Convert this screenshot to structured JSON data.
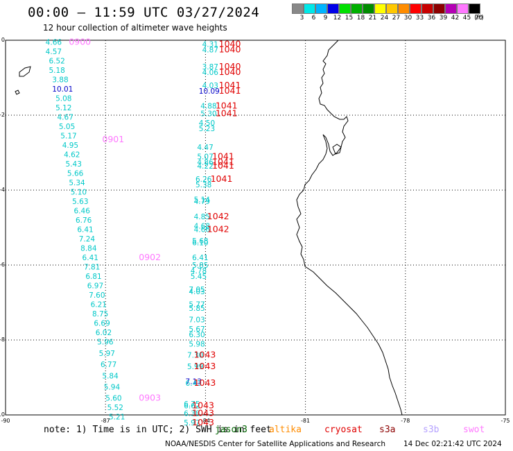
{
  "header": {
    "title": "00:00 – 11:59 UTC 03/27/2024",
    "subtitle": "12 hour collection of altimeter wave heights"
  },
  "legend": {
    "unit": "(ft)",
    "bins": [
      {
        "label": "3",
        "color": "#888888"
      },
      {
        "label": "6",
        "color": "#00e8e8"
      },
      {
        "label": "9",
        "color": "#00b4ff"
      },
      {
        "label": "12",
        "color": "#0000e8"
      },
      {
        "label": "15",
        "color": "#00e000"
      },
      {
        "label": "18",
        "color": "#00b000"
      },
      {
        "label": "21",
        "color": "#008c00"
      },
      {
        "label": "24",
        "color": "#ffff00"
      },
      {
        "label": "27",
        "color": "#ffc800"
      },
      {
        "label": "30",
        "color": "#ff8c00"
      },
      {
        "label": "33",
        "color": "#ff0000"
      },
      {
        "label": "36",
        "color": "#c80000"
      },
      {
        "label": "39",
        "color": "#8c0000"
      },
      {
        "label": "42",
        "color": "#b400b4"
      },
      {
        "label": "45",
        "color": "#ff78ff"
      },
      {
        "label": "70",
        "color": "#000000"
      }
    ]
  },
  "axes": {
    "lon_labels": [
      "-90",
      "-87",
      "-84",
      "-81",
      "-78",
      "-75"
    ],
    "lat_labels": [
      "0",
      "-2",
      "-4",
      "-6",
      "-8",
      "-10"
    ]
  },
  "track_a": [
    {
      "lat": -0.05,
      "lon": -88.8,
      "text": "4.66",
      "color": "#00c8c8"
    },
    {
      "lat": -0.3,
      "lon": -88.8,
      "text": "4.57",
      "color": "#00c8c8"
    },
    {
      "lat": -0.55,
      "lon": -88.7,
      "text": "6.52",
      "color": "#00c8c8"
    },
    {
      "lat": -0.8,
      "lon": -88.7,
      "text": "5.18",
      "color": "#00c8c8"
    },
    {
      "lat": -1.05,
      "lon": -88.6,
      "text": "3.88",
      "color": "#00c8c8"
    },
    {
      "lat": -1.3,
      "lon": -88.6,
      "text": "10.01",
      "color": "#0000c8"
    },
    {
      "lat": -1.55,
      "lon": -88.5,
      "text": "5.08",
      "color": "#00c8c8"
    },
    {
      "lat": -1.8,
      "lon": -88.5,
      "text": "5.12",
      "color": "#00c8c8"
    },
    {
      "lat": -2.05,
      "lon": -88.45,
      "text": "4.67",
      "color": "#00c8c8"
    },
    {
      "lat": -2.3,
      "lon": -88.4,
      "text": "5.05",
      "color": "#00c8c8"
    },
    {
      "lat": -2.55,
      "lon": -88.35,
      "text": "5.17",
      "color": "#00c8c8"
    },
    {
      "lat": -2.8,
      "lon": -88.3,
      "text": "4.95",
      "color": "#00c8c8"
    },
    {
      "lat": -3.05,
      "lon": -88.25,
      "text": "4.62",
      "color": "#00c8c8"
    },
    {
      "lat": -3.3,
      "lon": -88.2,
      "text": "5.43",
      "color": "#00c8c8"
    },
    {
      "lat": -3.55,
      "lon": -88.15,
      "text": "5.66",
      "color": "#00c8c8"
    },
    {
      "lat": -3.8,
      "lon": -88.1,
      "text": "5.34",
      "color": "#00c8c8"
    },
    {
      "lat": -4.05,
      "lon": -88.05,
      "text": "5.10",
      "color": "#00c8c8"
    },
    {
      "lat": -4.3,
      "lon": -88.0,
      "text": "5.63",
      "color": "#00c8c8"
    },
    {
      "lat": -4.55,
      "lon": -87.95,
      "text": "6.46",
      "color": "#00c8c8"
    },
    {
      "lat": -4.8,
      "lon": -87.9,
      "text": "6.76",
      "color": "#00c8c8"
    },
    {
      "lat": -5.05,
      "lon": -87.85,
      "text": "6.41",
      "color": "#00c8c8"
    },
    {
      "lat": -5.3,
      "lon": -87.8,
      "text": "7.24",
      "color": "#00c8c8"
    },
    {
      "lat": -5.55,
      "lon": -87.75,
      "text": "8.84",
      "color": "#00c8c8"
    },
    {
      "lat": -5.8,
      "lon": -87.7,
      "text": "6.41",
      "color": "#00c8c8"
    },
    {
      "lat": -6.05,
      "lon": -87.65,
      "text": "7.81",
      "color": "#00c8c8"
    },
    {
      "lat": -6.3,
      "lon": -87.6,
      "text": "6.81",
      "color": "#00c8c8"
    },
    {
      "lat": -6.55,
      "lon": -87.55,
      "text": "6.97",
      "color": "#00c8c8"
    },
    {
      "lat": -6.8,
      "lon": -87.5,
      "text": "7.60",
      "color": "#00c8c8"
    },
    {
      "lat": -7.05,
      "lon": -87.45,
      "text": "6.21",
      "color": "#00c8c8"
    },
    {
      "lat": -7.3,
      "lon": -87.4,
      "text": "8.75",
      "color": "#00c8c8"
    },
    {
      "lat": -7.55,
      "lon": -87.35,
      "text": "6.69",
      "color": "#00c8c8"
    },
    {
      "lat": -7.8,
      "lon": -87.3,
      "text": "6.02",
      "color": "#00c8c8"
    },
    {
      "lat": -8.05,
      "lon": -87.25,
      "text": "5.96",
      "color": "#00c8c8"
    },
    {
      "lat": -8.35,
      "lon": -87.2,
      "text": "5.97",
      "color": "#00c8c8"
    },
    {
      "lat": -8.65,
      "lon": -87.15,
      "text": "6.77",
      "color": "#00c8c8"
    },
    {
      "lat": -8.95,
      "lon": -87.1,
      "text": "5.84",
      "color": "#00c8c8"
    },
    {
      "lat": -9.25,
      "lon": -87.05,
      "text": "5.94",
      "color": "#00c8c8"
    },
    {
      "lat": -9.55,
      "lon": -87.0,
      "text": "5.60",
      "color": "#00c8c8"
    },
    {
      "lat": -9.8,
      "lon": -86.95,
      "text": "5.52",
      "color": "#00c8c8"
    },
    {
      "lat": -10.05,
      "lon": -86.9,
      "text": "5.21",
      "color": "#00c8c8"
    }
  ],
  "track_b": [
    {
      "lat": -0.1,
      "lon": -84.1,
      "text": "4.31",
      "color": "#00c8c8"
    },
    {
      "lat": -0.25,
      "lon": -84.1,
      "text": "4.87",
      "color": "#00c8c8"
    },
    {
      "lat": -0.7,
      "lon": -84.1,
      "text": "3.87",
      "color": "#00c8c8"
    },
    {
      "lat": -0.85,
      "lon": -84.1,
      "text": "4.06",
      "color": "#00c8c8"
    },
    {
      "lat": -1.2,
      "lon": -84.1,
      "text": "4.03",
      "color": "#00c8c8"
    },
    {
      "lat": -1.35,
      "lon": -84.2,
      "text": "10.09",
      "color": "#0000c8"
    },
    {
      "lat": -1.75,
      "lon": -84.15,
      "text": "4.88",
      "color": "#00c8c8"
    },
    {
      "lat": -1.95,
      "lon": -84.15,
      "text": "5.30",
      "color": "#00c8c8"
    },
    {
      "lat": -2.2,
      "lon": -84.2,
      "text": "4.50",
      "color": "#00c8c8"
    },
    {
      "lat": -2.35,
      "lon": -84.2,
      "text": "5.23",
      "color": "#00c8c8"
    },
    {
      "lat": -2.85,
      "lon": -84.25,
      "text": "4.47",
      "color": "#00c8c8"
    },
    {
      "lat": -3.1,
      "lon": -84.25,
      "text": "5.07",
      "color": "#00c8c8"
    },
    {
      "lat": -3.25,
      "lon": -84.25,
      "text": "4.86",
      "color": "#00c8c8"
    },
    {
      "lat": -3.35,
      "lon": -84.25,
      "text": "4.22",
      "color": "#00c8c8"
    },
    {
      "lat": -3.7,
      "lon": -84.3,
      "text": "6.26",
      "color": "#00c8c8"
    },
    {
      "lat": -3.85,
      "lon": -84.3,
      "text": "5.38",
      "color": "#00c8c8"
    },
    {
      "lat": -4.25,
      "lon": -84.35,
      "text": "5.14",
      "color": "#00c8c8"
    },
    {
      "lat": -4.3,
      "lon": -84.35,
      "text": "4.79",
      "color": "#00c8c8"
    },
    {
      "lat": -4.7,
      "lon": -84.35,
      "text": "4.85",
      "color": "#00c8c8"
    },
    {
      "lat": -4.95,
      "lon": -84.35,
      "text": "4.68",
      "color": "#00c8c8"
    },
    {
      "lat": -5.05,
      "lon": -84.35,
      "text": "4.66",
      "color": "#00c8c8"
    },
    {
      "lat": -5.35,
      "lon": -84.4,
      "text": "5.68",
      "color": "#00c8c8"
    },
    {
      "lat": -5.4,
      "lon": -84.4,
      "text": "6.10",
      "color": "#00c8c8"
    },
    {
      "lat": -5.8,
      "lon": -84.4,
      "text": "6.41",
      "color": "#00c8c8"
    },
    {
      "lat": -6.0,
      "lon": -84.4,
      "text": "5.85",
      "color": "#00c8c8"
    },
    {
      "lat": -6.15,
      "lon": -84.45,
      "text": "4.78",
      "color": "#00c8c8"
    },
    {
      "lat": -6.3,
      "lon": -84.45,
      "text": "5.45",
      "color": "#00c8c8"
    },
    {
      "lat": -6.65,
      "lon": -84.5,
      "text": "7.05",
      "color": "#00c8c8"
    },
    {
      "lat": -6.7,
      "lon": -84.5,
      "text": "4.03",
      "color": "#00c8c8"
    },
    {
      "lat": -7.05,
      "lon": -84.5,
      "text": "5.77",
      "color": "#00c8c8"
    },
    {
      "lat": -7.15,
      "lon": -84.5,
      "text": "5.85",
      "color": "#00c8c8"
    },
    {
      "lat": -7.45,
      "lon": -84.5,
      "text": "7.03",
      "color": "#00c8c8"
    },
    {
      "lat": -7.7,
      "lon": -84.5,
      "text": "5.67",
      "color": "#00c8c8"
    },
    {
      "lat": -7.85,
      "lon": -84.5,
      "text": "6.30",
      "color": "#00c8c8"
    },
    {
      "lat": -8.1,
      "lon": -84.5,
      "text": "5.98",
      "color": "#00c8c8"
    },
    {
      "lat": -8.4,
      "lon": -84.55,
      "text": "7.30",
      "color": "#00c8c8"
    },
    {
      "lat": -8.7,
      "lon": -84.55,
      "text": "5.99",
      "color": "#00c8c8"
    },
    {
      "lat": -9.1,
      "lon": -84.6,
      "text": "7.13",
      "color": "#0000c8"
    },
    {
      "lat": -9.15,
      "lon": -84.6,
      "text": "6.43",
      "color": "#00c8c8"
    },
    {
      "lat": -9.7,
      "lon": -84.65,
      "text": "6.75",
      "color": "#00c8c8"
    },
    {
      "lat": -9.75,
      "lon": -84.65,
      "text": "6.62",
      "color": "#00c8c8"
    },
    {
      "lat": -9.95,
      "lon": -84.65,
      "text": "6.38",
      "color": "#00c8c8"
    },
    {
      "lat": -10.2,
      "lon": -84.65,
      "text": "5.97",
      "color": "#00c8c8"
    }
  ],
  "time_labels": [
    {
      "lat": -0.05,
      "lon": -88.1,
      "text": "0900",
      "color": "#ff78ff"
    },
    {
      "lat": -2.65,
      "lon": -87.1,
      "text": "0901",
      "color": "#ff78ff"
    },
    {
      "lat": -5.8,
      "lon": -86.0,
      "text": "0902",
      "color": "#ff78ff"
    },
    {
      "lat": -9.55,
      "lon": -86.0,
      "text": "0903",
      "color": "#ff78ff"
    },
    {
      "lat": -0.1,
      "lon": -83.6,
      "text": "1040",
      "color": "#e00000"
    },
    {
      "lat": -0.25,
      "lon": -83.6,
      "text": "1040",
      "color": "#e00000"
    },
    {
      "lat": -0.7,
      "lon": -83.6,
      "text": "1040",
      "color": "#e00000"
    },
    {
      "lat": -0.85,
      "lon": -83.6,
      "text": "1040",
      "color": "#e00000"
    },
    {
      "lat": -1.2,
      "lon": -83.6,
      "text": "1041",
      "color": "#e00000"
    },
    {
      "lat": -1.35,
      "lon": -83.6,
      "text": "1041",
      "color": "#e00000"
    },
    {
      "lat": -1.75,
      "lon": -83.7,
      "text": "1041",
      "color": "#e00000"
    },
    {
      "lat": -1.95,
      "lon": -83.7,
      "text": "1041",
      "color": "#e00000"
    },
    {
      "lat": -3.1,
      "lon": -83.8,
      "text": "1041",
      "color": "#e00000"
    },
    {
      "lat": -3.25,
      "lon": -83.8,
      "text": "1041",
      "color": "#e00000"
    },
    {
      "lat": -3.35,
      "lon": -83.8,
      "text": "1041",
      "color": "#e00000"
    },
    {
      "lat": -3.7,
      "lon": -83.85,
      "text": "1041",
      "color": "#e00000"
    },
    {
      "lat": -4.7,
      "lon": -83.95,
      "text": "1042",
      "color": "#e00000"
    },
    {
      "lat": -5.05,
      "lon": -83.95,
      "text": "1042",
      "color": "#e00000"
    },
    {
      "lat": -8.4,
      "lon": -84.35,
      "text": "1043",
      "color": "#e00000"
    },
    {
      "lat": -8.7,
      "lon": -84.35,
      "text": "1043",
      "color": "#e00000"
    },
    {
      "lat": -9.15,
      "lon": -84.35,
      "text": "1043",
      "color": "#e00000"
    },
    {
      "lat": -9.75,
      "lon": -84.4,
      "text": "1043",
      "color": "#e00000"
    },
    {
      "lat": -9.95,
      "lon": -84.4,
      "text": "1043",
      "color": "#e00000"
    },
    {
      "lat": -10.2,
      "lon": -84.4,
      "text": "1043",
      "color": "#e00000"
    }
  ],
  "footer": {
    "note": "note: 1) Time is in UTC; 2) SWH is in feet",
    "missions": [
      {
        "name": "jason3",
        "color": "#006400"
      },
      {
        "name": "altika",
        "color": "#ff8c00"
      },
      {
        "name": "cryosat",
        "color": "#e00000"
      },
      {
        "name": "s3a",
        "color": "#8c0000"
      },
      {
        "name": "s3b",
        "color": "#b4a0ff"
      },
      {
        "name": "swot",
        "color": "#ff78ff"
      }
    ],
    "credit": "NOAA/NESDIS Center for Satellite Applications and Research",
    "timestamp": "14 Dec 02:21:42 UTC 2024"
  }
}
